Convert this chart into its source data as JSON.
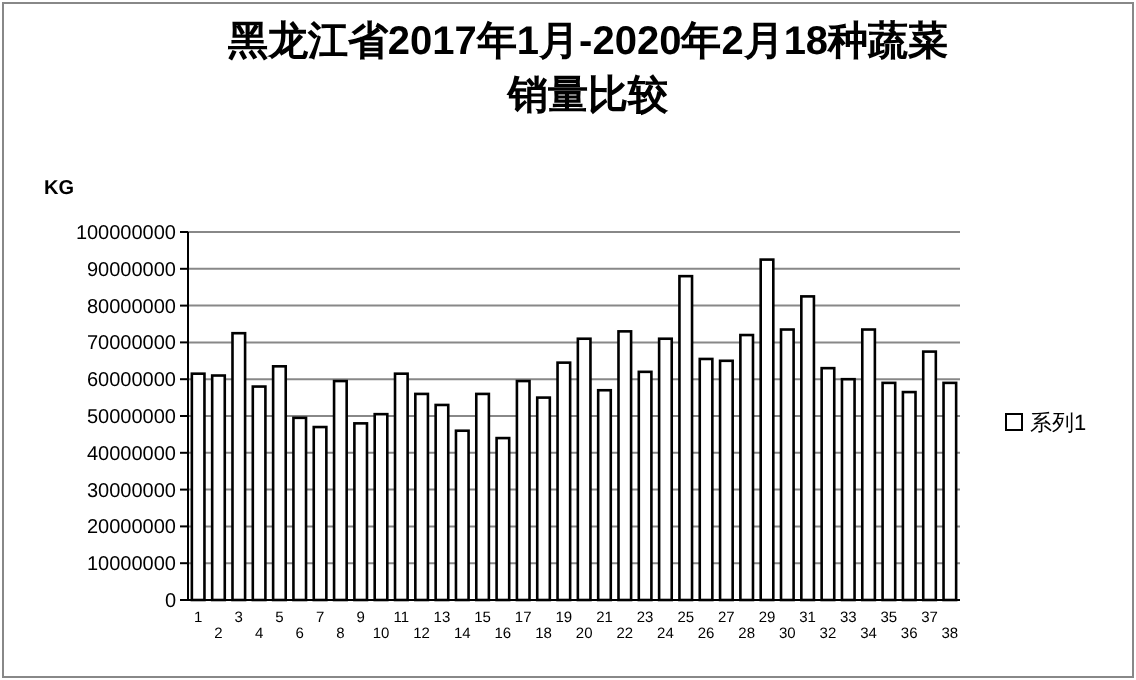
{
  "chart_data": {
    "type": "bar",
    "title": "黑龙江省2017年1月-2020年2月18种蔬菜销量比较",
    "ylabel": "KG",
    "categories": [
      "1",
      "2",
      "3",
      "4",
      "5",
      "6",
      "7",
      "8",
      "9",
      "10",
      "11",
      "12",
      "13",
      "14",
      "15",
      "16",
      "17",
      "18",
      "19",
      "20",
      "21",
      "22",
      "23",
      "24",
      "25",
      "26",
      "27",
      "28",
      "29",
      "30",
      "31",
      "32",
      "33",
      "34",
      "35",
      "36",
      "37",
      "38"
    ],
    "series": [
      {
        "name": "系列1",
        "color": "#ffffff",
        "values": [
          61500000,
          61000000,
          72500000,
          58000000,
          63500000,
          49500000,
          47000000,
          59500000,
          48000000,
          50500000,
          61500000,
          56000000,
          53000000,
          46000000,
          56000000,
          44000000,
          59500000,
          55000000,
          64500000,
          71000000,
          57000000,
          73000000,
          62000000,
          71000000,
          88000000,
          65500000,
          65000000,
          72000000,
          92500000,
          73500000,
          82500000,
          63000000,
          60000000,
          73500000,
          59000000,
          56500000,
          67500000,
          59000000
        ]
      }
    ],
    "ylim": [
      0,
      100000000
    ],
    "yticks": [
      0,
      10000000,
      20000000,
      30000000,
      40000000,
      50000000,
      60000000,
      70000000,
      80000000,
      90000000,
      100000000
    ],
    "grid": "y",
    "legend": "right"
  }
}
